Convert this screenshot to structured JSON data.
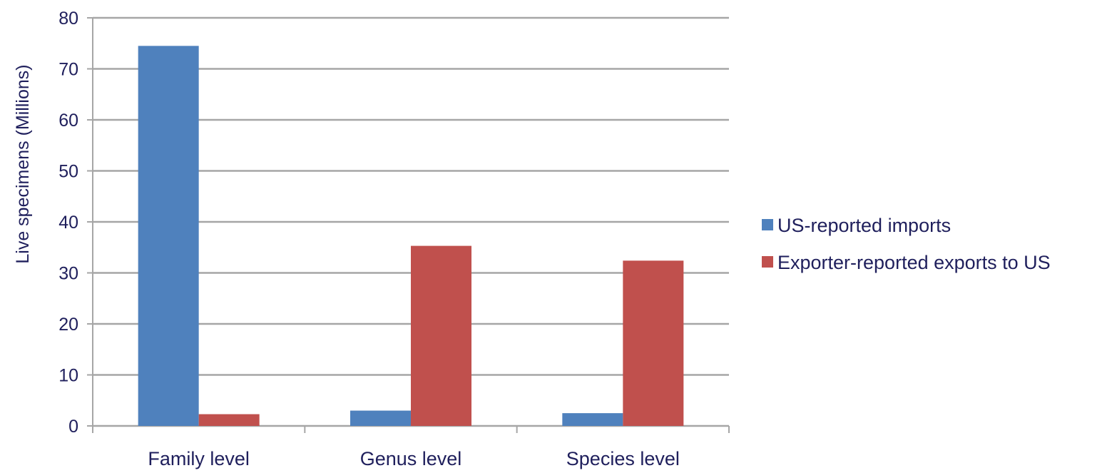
{
  "chart_data": {
    "type": "bar",
    "title": "",
    "xlabel": "",
    "ylabel": "Live specimens  (Millions)",
    "ylim": [
      0,
      80
    ],
    "yticks": [
      0,
      10,
      20,
      30,
      40,
      50,
      60,
      70,
      80
    ],
    "grid": true,
    "legend_position": "right",
    "categories": [
      "Family level",
      "Genus level",
      "Species level"
    ],
    "series": [
      {
        "name": "US-reported imports",
        "color": "#4f81bd",
        "values": [
          74.5,
          3.0,
          2.5
        ]
      },
      {
        "name": "Exporter-reported exports to US",
        "color": "#c0504d",
        "values": [
          2.3,
          35.3,
          32.4
        ]
      }
    ]
  }
}
